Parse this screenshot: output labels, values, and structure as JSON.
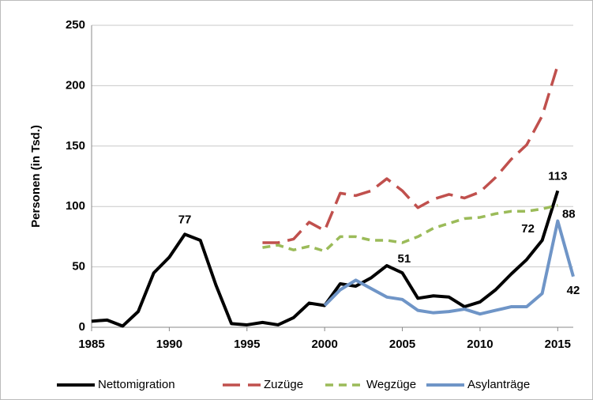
{
  "chart_data": {
    "type": "line",
    "ylabel": "Personen (in Tsd.)",
    "x": [
      1985,
      1986,
      1987,
      1988,
      1989,
      1990,
      1991,
      1992,
      1993,
      1994,
      1995,
      1996,
      1997,
      1998,
      1999,
      2000,
      2001,
      2002,
      2003,
      2004,
      2005,
      2006,
      2007,
      2008,
      2009,
      2010,
      2011,
      2012,
      2013,
      2014,
      2015,
      2016
    ],
    "xlim": [
      1985,
      2016
    ],
    "xticks": [
      1985,
      1990,
      1995,
      2000,
      2005,
      2010,
      2015
    ],
    "ylim": [
      0,
      250
    ],
    "yticks": [
      0,
      50,
      100,
      150,
      200,
      250
    ],
    "grid": true,
    "legend": "bottom",
    "series": [
      {
        "name": "Nettomigration",
        "color": "#000000",
        "dash": "solid",
        "label_color": "#000000",
        "values": [
          5,
          6,
          1,
          13,
          45,
          58,
          77,
          72,
          35,
          3,
          2,
          4,
          2,
          8,
          20,
          18,
          36,
          34,
          41,
          51,
          45,
          24,
          26,
          25,
          17,
          21,
          31,
          44,
          56,
          72,
          113,
          null
        ],
        "labeled_points": [
          6,
          19,
          29,
          30
        ]
      },
      {
        "name": "Zuzüge",
        "color": "#c0504d",
        "dash": "long",
        "values": [
          null,
          null,
          null,
          null,
          null,
          null,
          null,
          null,
          null,
          null,
          null,
          70,
          70,
          73,
          87,
          80,
          111,
          109,
          113,
          123,
          113,
          99,
          106,
          110,
          107,
          112,
          124,
          139,
          151,
          175,
          217,
          null
        ]
      },
      {
        "name": "Wegzüge",
        "color": "#9bbb59",
        "dash": "short",
        "values": [
          null,
          null,
          null,
          null,
          null,
          null,
          null,
          null,
          null,
          null,
          null,
          66,
          68,
          64,
          67,
          63,
          75,
          75,
          72,
          72,
          70,
          75,
          82,
          86,
          90,
          91,
          94,
          96,
          96,
          98,
          101,
          null
        ]
      },
      {
        "name": "Asylanträge",
        "color": "#6f95c7",
        "dash": "solid",
        "label_color": "#2e75b6",
        "values": [
          null,
          null,
          null,
          null,
          null,
          null,
          null,
          null,
          null,
          null,
          null,
          null,
          null,
          null,
          null,
          18,
          31,
          39,
          32,
          25,
          23,
          14,
          12,
          13,
          15,
          11,
          14,
          17,
          17,
          28,
          88,
          42
        ],
        "labeled_points": [
          30,
          31
        ]
      }
    ]
  }
}
